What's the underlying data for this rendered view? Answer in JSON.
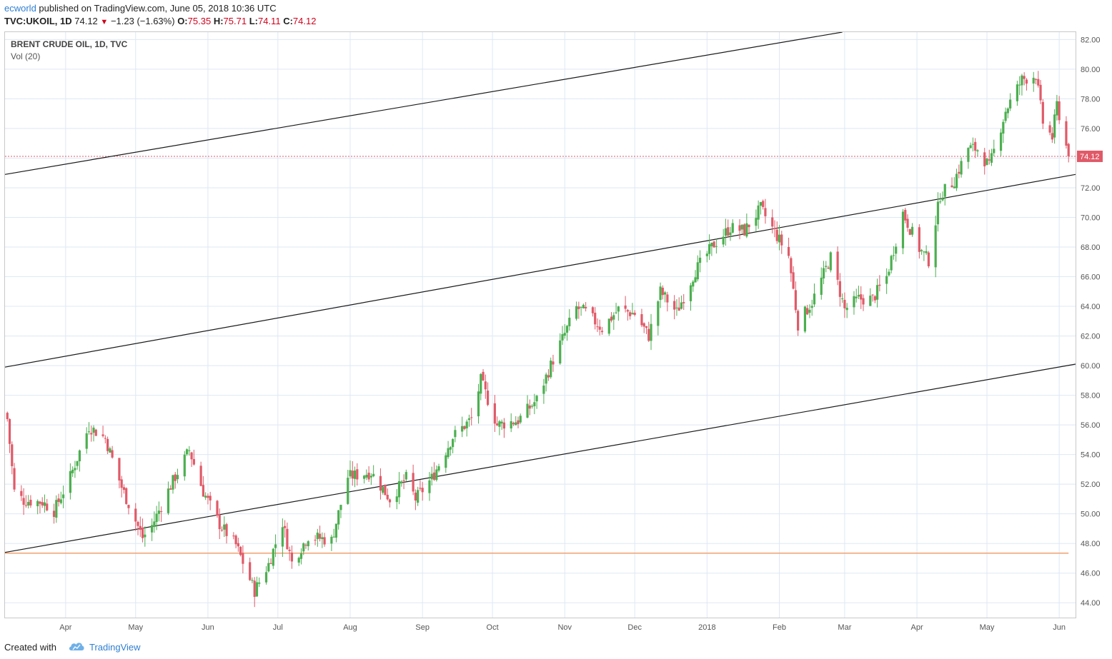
{
  "header": {
    "author": "ecworld",
    "published_text": " published on TradingView.com, June 05, 2018 10:36 UTC"
  },
  "quote": {
    "symbol": "TVC:UKOIL, 1D",
    "last": "74.12",
    "change": "−1.23 (−1.63%)",
    "open_label": "O:",
    "open": "75.35",
    "high_label": "H:",
    "high": "75.71",
    "low_label": "L:",
    "low": "74.11",
    "close_label": "C:",
    "close": "74.12"
  },
  "legend": {
    "title": "BRENT CRUDE OIL, 1D, TVC",
    "volume": "Vol (20)"
  },
  "footer": {
    "created_with": "Created with",
    "brand": "TradingView"
  },
  "colors": {
    "up": "#4caf50",
    "down": "#e05a68",
    "grid": "#dde8f5",
    "trendline": "#1a1a1a",
    "price_line": "#e05a68",
    "support_line": "#f0a070",
    "axis_text": "#555555"
  },
  "chart_data": {
    "type": "candlestick",
    "title": "BRENT CRUDE OIL, 1D, TVC",
    "last_price": 74.12,
    "price_label": "74.12",
    "ylim": [
      43.0,
      82.5
    ],
    "yticks": [
      "44.00",
      "46.00",
      "48.00",
      "50.00",
      "52.00",
      "54.00",
      "56.00",
      "58.00",
      "60.00",
      "62.00",
      "64.00",
      "66.00",
      "68.00",
      "70.00",
      "72.00",
      "74.00",
      "76.00",
      "78.00",
      "80.00",
      "82.00"
    ],
    "xlim": [
      "2017-03-06",
      "2018-06-08"
    ],
    "xticks": [
      {
        "date": "2017-04-01",
        "label": "Apr"
      },
      {
        "date": "2017-05-01",
        "label": "May"
      },
      {
        "date": "2017-06-01",
        "label": "Jun"
      },
      {
        "date": "2017-07-01",
        "label": "Jul"
      },
      {
        "date": "2017-08-01",
        "label": "Aug"
      },
      {
        "date": "2017-09-01",
        "label": "Sep"
      },
      {
        "date": "2017-10-01",
        "label": "Oct"
      },
      {
        "date": "2017-11-01",
        "label": "Nov"
      },
      {
        "date": "2017-12-01",
        "label": "Dec"
      },
      {
        "date": "2018-01-01",
        "label": "2018"
      },
      {
        "date": "2018-02-01",
        "label": "Feb"
      },
      {
        "date": "2018-03-01",
        "label": "Mar"
      },
      {
        "date": "2018-04-01",
        "label": "Apr"
      },
      {
        "date": "2018-05-01",
        "label": "May"
      },
      {
        "date": "2018-06-01",
        "label": "Jun"
      }
    ],
    "anchors": [
      [
        "2017-03-07",
        56.4
      ],
      [
        "2017-03-10",
        51.5
      ],
      [
        "2017-03-14",
        50.9
      ],
      [
        "2017-03-22",
        50.8
      ],
      [
        "2017-03-27",
        50.2
      ],
      [
        "2017-04-03",
        52.5
      ],
      [
        "2017-04-11",
        55.9
      ],
      [
        "2017-04-18",
        55.1
      ],
      [
        "2017-04-25",
        51.8
      ],
      [
        "2017-05-04",
        48.4
      ],
      [
        "2017-05-08",
        49.2
      ],
      [
        "2017-05-16",
        51.9
      ],
      [
        "2017-05-24",
        54.3
      ],
      [
        "2017-05-30",
        51.5
      ],
      [
        "2017-06-06",
        49.3
      ],
      [
        "2017-06-13",
        47.9
      ],
      [
        "2017-06-21",
        44.8
      ],
      [
        "2017-06-27",
        46.6
      ],
      [
        "2017-07-03",
        49.4
      ],
      [
        "2017-07-07",
        46.7
      ],
      [
        "2017-07-14",
        48.5
      ],
      [
        "2017-07-24",
        48.2
      ],
      [
        "2017-07-31",
        52.5
      ],
      [
        "2017-08-10",
        52.8
      ],
      [
        "2017-08-18",
        51.0
      ],
      [
        "2017-08-25",
        52.4
      ],
      [
        "2017-08-29",
        51.0
      ],
      [
        "2017-09-05",
        52.4
      ],
      [
        "2017-09-14",
        55.2
      ],
      [
        "2017-09-22",
        56.4
      ],
      [
        "2017-09-26",
        59.0
      ],
      [
        "2017-10-03",
        56.0
      ],
      [
        "2017-10-12",
        56.3
      ],
      [
        "2017-10-20",
        57.7
      ],
      [
        "2017-10-27",
        60.4
      ],
      [
        "2017-11-06",
        63.9
      ],
      [
        "2017-11-10",
        63.6
      ],
      [
        "2017-11-17",
        62.5
      ],
      [
        "2017-11-24",
        63.8
      ],
      [
        "2017-12-01",
        63.5
      ],
      [
        "2017-12-07",
        62.0
      ],
      [
        "2017-12-12",
        65.0
      ],
      [
        "2017-12-19",
        63.6
      ],
      [
        "2017-12-27",
        66.4
      ],
      [
        "2018-01-04",
        68.2
      ],
      [
        "2018-01-11",
        69.3
      ],
      [
        "2018-01-17",
        69.1
      ],
      [
        "2018-01-24",
        70.6
      ],
      [
        "2018-01-30",
        69.0
      ],
      [
        "2018-02-05",
        67.4
      ],
      [
        "2018-02-09",
        62.8
      ],
      [
        "2018-02-15",
        64.3
      ],
      [
        "2018-02-23",
        67.3
      ],
      [
        "2018-03-01",
        63.8
      ],
      [
        "2018-03-07",
        64.5
      ],
      [
        "2018-03-13",
        64.5
      ],
      [
        "2018-03-19",
        66.0
      ],
      [
        "2018-03-26",
        70.3
      ],
      [
        "2018-04-02",
        67.9
      ],
      [
        "2018-04-06",
        67.1
      ],
      [
        "2018-04-11",
        71.5
      ],
      [
        "2018-04-17",
        72.5
      ],
      [
        "2018-04-23",
        74.7
      ],
      [
        "2018-04-27",
        74.6
      ],
      [
        "2018-05-02",
        73.4
      ],
      [
        "2018-05-09",
        77.2
      ],
      [
        "2018-05-16",
        79.3
      ],
      [
        "2018-05-22",
        79.6
      ],
      [
        "2018-05-25",
        76.4
      ],
      [
        "2018-05-29",
        75.4
      ],
      [
        "2018-05-31",
        77.6
      ],
      [
        "2018-06-05",
        74.12
      ]
    ],
    "trendlines": [
      {
        "name": "upper-channel",
        "points": [
          [
            "2017-03-06",
            72.9
          ],
          [
            "2018-02-28",
            82.5
          ]
        ]
      },
      {
        "name": "middle-channel",
        "points": [
          [
            "2017-03-06",
            59.9
          ],
          [
            "2018-06-08",
            72.9
          ]
        ]
      },
      {
        "name": "lower-channel",
        "points": [
          [
            "2017-03-06",
            47.4
          ],
          [
            "2018-06-08",
            60.1
          ]
        ]
      }
    ],
    "horizontal_lines": [
      {
        "name": "support-line",
        "value": 47.35,
        "from": "2017-03-06",
        "to": "2018-06-05"
      },
      {
        "name": "last-price-line",
        "value": 74.12,
        "from": "2017-03-06",
        "to": "2018-06-08"
      }
    ]
  }
}
